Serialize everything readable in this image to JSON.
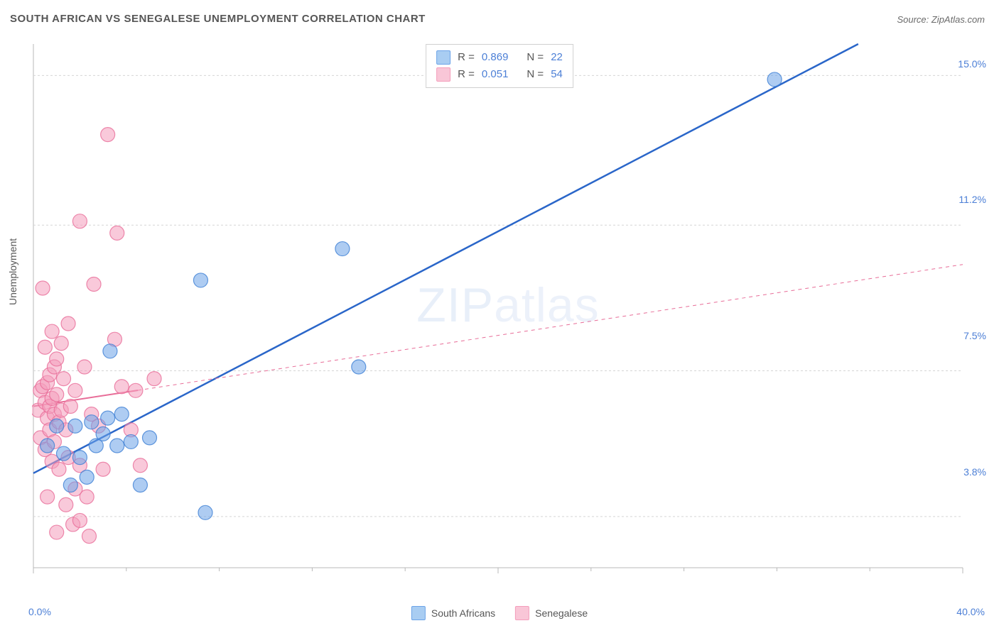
{
  "title": "SOUTH AFRICAN VS SENEGALESE UNEMPLOYMENT CORRELATION CHART",
  "source": "Source: ZipAtlas.com",
  "watermark": "ZIPatlas",
  "chart": {
    "type": "scatter",
    "y_axis_label": "Unemployment",
    "background_color": "#ffffff",
    "plot_border_color": "#b8b8b8",
    "grid_color": "#d5d5d5",
    "tick_color": "#b8b8b8",
    "tick_label_color": "#4c7fd6",
    "axis_label_color": "#565656",
    "xlim": [
      0,
      40
    ],
    "ylim": [
      2.5,
      15.8
    ],
    "x_ticks": [
      0,
      20,
      40
    ],
    "x_tick_labels": [
      "0.0%",
      "",
      "40.0%"
    ],
    "minor_x_ticks": [
      4,
      8,
      12,
      16,
      24,
      28,
      32,
      36
    ],
    "y_ticks": [
      3.8,
      7.5,
      11.2,
      15.0
    ],
    "y_tick_labels": [
      "3.8%",
      "7.5%",
      "11.2%",
      "15.0%"
    ],
    "marker_radius": 10,
    "marker_opacity": 0.55,
    "series": [
      {
        "name": "South Africans",
        "color": "#6ba3e8",
        "stroke": "#3d7fd4",
        "trend_line": {
          "x1": 0,
          "y1": 4.9,
          "x2": 35.5,
          "y2": 15.8,
          "stroke": "#2a66c9",
          "width": 2.5,
          "dash": "none",
          "solid_until_x": 40
        },
        "R": "0.869",
        "N": "22",
        "points": [
          [
            0.6,
            5.6
          ],
          [
            1.0,
            6.1
          ],
          [
            1.3,
            5.4
          ],
          [
            1.6,
            4.6
          ],
          [
            1.8,
            6.1
          ],
          [
            2.0,
            5.3
          ],
          [
            2.3,
            4.8
          ],
          [
            2.5,
            6.2
          ],
          [
            2.7,
            5.6
          ],
          [
            3.0,
            5.9
          ],
          [
            3.2,
            6.3
          ],
          [
            3.3,
            8.0
          ],
          [
            3.6,
            5.6
          ],
          [
            3.8,
            6.4
          ],
          [
            4.2,
            5.7
          ],
          [
            4.6,
            4.6
          ],
          [
            5.0,
            5.8
          ],
          [
            7.2,
            9.8
          ],
          [
            7.4,
            3.9
          ],
          [
            13.3,
            10.6
          ],
          [
            14.0,
            7.6
          ],
          [
            31.9,
            14.9
          ]
        ]
      },
      {
        "name": "Senegalese",
        "color": "#f49dbb",
        "stroke": "#e86d98",
        "trend_line": {
          "x1": 0,
          "y1": 6.6,
          "x2": 40,
          "y2": 10.2,
          "stroke": "#e86d98",
          "width": 1.5,
          "dash": "5 5",
          "solid_until_x": 4.5
        },
        "R": "0.051",
        "N": "54",
        "points": [
          [
            0.2,
            6.5
          ],
          [
            0.3,
            5.8
          ],
          [
            0.3,
            7.0
          ],
          [
            0.4,
            7.1
          ],
          [
            0.4,
            9.6
          ],
          [
            0.5,
            6.7
          ],
          [
            0.5,
            5.5
          ],
          [
            0.5,
            8.1
          ],
          [
            0.6,
            6.3
          ],
          [
            0.6,
            7.2
          ],
          [
            0.6,
            4.3
          ],
          [
            0.7,
            6.6
          ],
          [
            0.7,
            6.0
          ],
          [
            0.7,
            7.4
          ],
          [
            0.8,
            6.8
          ],
          [
            0.8,
            5.2
          ],
          [
            0.8,
            8.5
          ],
          [
            0.9,
            6.4
          ],
          [
            0.9,
            7.6
          ],
          [
            0.9,
            5.7
          ],
          [
            1.0,
            6.9
          ],
          [
            1.0,
            3.4
          ],
          [
            1.0,
            7.8
          ],
          [
            1.1,
            6.2
          ],
          [
            1.1,
            5.0
          ],
          [
            1.2,
            8.2
          ],
          [
            1.2,
            6.5
          ],
          [
            1.3,
            7.3
          ],
          [
            1.4,
            4.1
          ],
          [
            1.4,
            6.0
          ],
          [
            1.5,
            5.3
          ],
          [
            1.5,
            8.7
          ],
          [
            1.6,
            6.6
          ],
          [
            1.7,
            3.6
          ],
          [
            1.8,
            7.0
          ],
          [
            1.8,
            4.5
          ],
          [
            2.0,
            11.3
          ],
          [
            2.0,
            5.1
          ],
          [
            2.0,
            3.7
          ],
          [
            2.2,
            7.6
          ],
          [
            2.3,
            4.3
          ],
          [
            2.4,
            3.3
          ],
          [
            2.5,
            6.4
          ],
          [
            2.6,
            9.7
          ],
          [
            2.8,
            6.1
          ],
          [
            3.0,
            5.0
          ],
          [
            3.2,
            13.5
          ],
          [
            3.5,
            8.3
          ],
          [
            3.6,
            11.0
          ],
          [
            3.8,
            7.1
          ],
          [
            4.2,
            6.0
          ],
          [
            4.4,
            7.0
          ],
          [
            4.6,
            5.1
          ],
          [
            5.2,
            7.3
          ]
        ]
      }
    ],
    "top_legend_rows": [
      {
        "swatch_fill": "#a9cdf2",
        "swatch_stroke": "#6ba3e8",
        "r_label": "R =",
        "r_val": "0.869",
        "n_label": "N =",
        "n_val": "22"
      },
      {
        "swatch_fill": "#f9c6d7",
        "swatch_stroke": "#f49dbb",
        "r_label": "R =",
        "r_val": "0.051",
        "n_label": "N =",
        "n_val": "54"
      }
    ],
    "bottom_legend": [
      {
        "label": "South Africans",
        "swatch_fill": "#a9cdf2",
        "swatch_stroke": "#6ba3e8"
      },
      {
        "label": "Senegalese",
        "swatch_fill": "#f9c6d7",
        "swatch_stroke": "#f49dbb"
      }
    ]
  }
}
